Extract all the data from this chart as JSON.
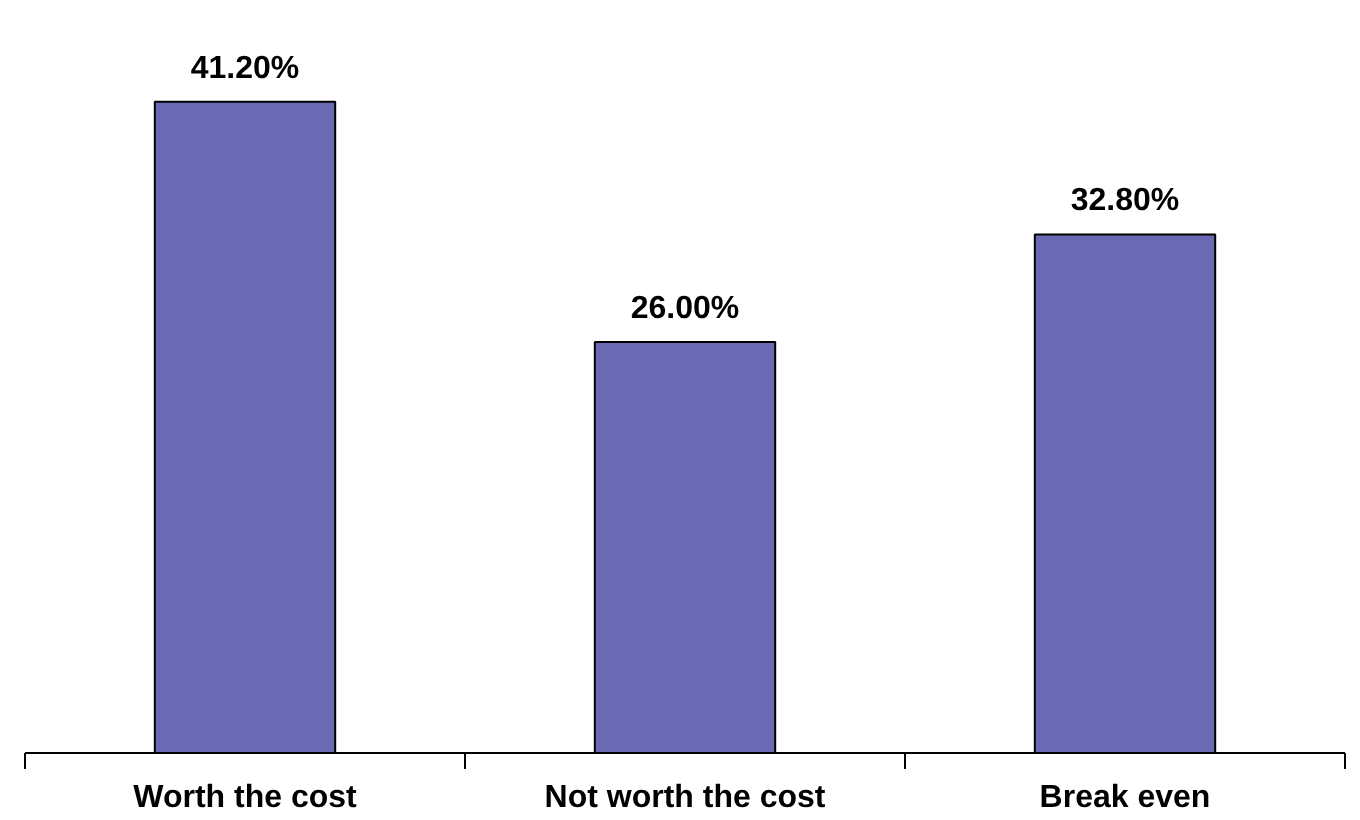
{
  "chart_data": {
    "type": "bar",
    "categories": [
      "Worth the cost",
      "Not worth the cost",
      "Break even"
    ],
    "values": [
      41.2,
      26.0,
      32.8
    ],
    "value_labels": [
      "41.20%",
      "26.00%",
      "32.80%"
    ],
    "color": "#6a6ab4",
    "grid": false
  }
}
